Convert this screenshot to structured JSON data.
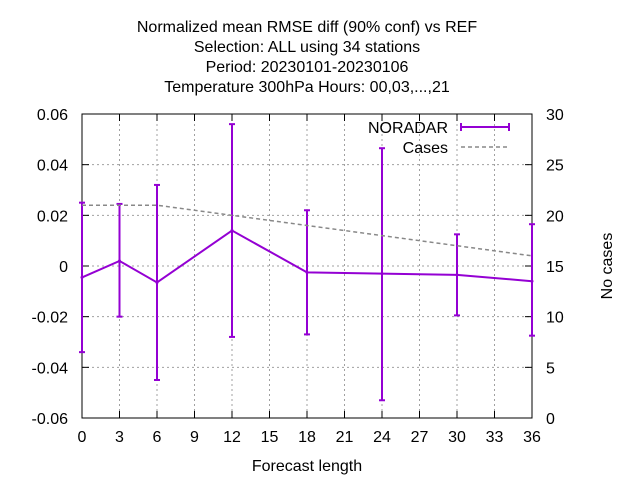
{
  "chart_data": {
    "type": "line",
    "title_lines": [
      "Normalized mean RMSE diff (90% conf) vs REF",
      "Selection: ALL using    34 stations",
      "Period: 20230101-20230106",
      "Temperature 300hPa   Hours:  00,03,...,21"
    ],
    "xlabel": "Forecast length",
    "ylabel": "",
    "y2label": "No cases",
    "xlim": [
      0,
      36
    ],
    "ylim": [
      -0.06,
      0.06
    ],
    "y2lim": [
      0,
      30
    ],
    "x_ticks": [
      0,
      3,
      6,
      9,
      12,
      15,
      18,
      21,
      24,
      27,
      30,
      33,
      36
    ],
    "y_ticks": [
      -0.06,
      -0.04,
      -0.02,
      0,
      0.02,
      0.04,
      0.06
    ],
    "y_tick_labels": [
      "-0.06",
      "-0.04",
      "-0.02",
      "0",
      "0.02",
      "0.04",
      "0.06"
    ],
    "y2_ticks": [
      0,
      5,
      10,
      15,
      20,
      25,
      30
    ],
    "grid": true,
    "legend_position": "top-right",
    "series": [
      {
        "name": "NORADAR",
        "axis": "y",
        "color": "#9400d3",
        "style": "line-errorbars",
        "x": [
          0,
          3,
          6,
          12,
          18,
          24,
          30,
          36
        ],
        "y": [
          -0.0045,
          0.002,
          -0.0065,
          0.014,
          -0.0025,
          -0.003,
          -0.0035,
          -0.006
        ],
        "err_low": [
          -0.034,
          -0.02,
          -0.045,
          -0.028,
          -0.027,
          -0.053,
          -0.0195,
          -0.0275
        ],
        "err_high": [
          0.025,
          0.0245,
          0.032,
          0.056,
          0.022,
          0.0465,
          0.0125,
          0.0165
        ]
      },
      {
        "name": "Cases",
        "axis": "y2",
        "color": "#888888",
        "style": "dashed",
        "x": [
          0,
          3,
          6,
          12,
          18,
          24,
          30,
          36
        ],
        "y": [
          21,
          21,
          21,
          20,
          19,
          18,
          17,
          16
        ]
      }
    ]
  }
}
